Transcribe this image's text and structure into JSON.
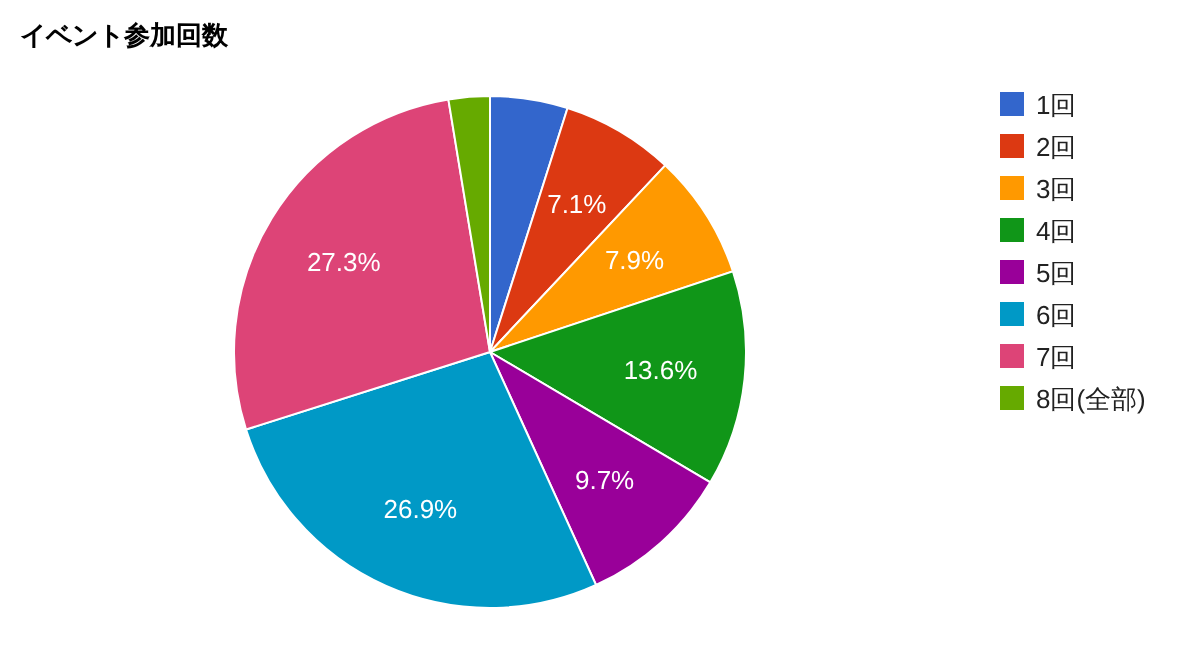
{
  "chart_data": {
    "type": "pie",
    "title": "イベント参加回数",
    "categories": [
      "1回",
      "2回",
      "3回",
      "4回",
      "5回",
      "6回",
      "7回",
      "8回(全部)"
    ],
    "values": [
      4.9,
      7.1,
      7.9,
      13.6,
      9.7,
      26.9,
      27.3,
      2.6
    ],
    "value_labels": [
      null,
      "7.1%",
      "7.9%",
      "13.6%",
      "9.7%",
      "26.9%",
      "27.3%",
      null
    ],
    "colors": [
      "#3366cc",
      "#dc3912",
      "#ff9900",
      "#109618",
      "#990099",
      "#0099c6",
      "#dd4477",
      "#66aa00"
    ],
    "legend": "right"
  }
}
